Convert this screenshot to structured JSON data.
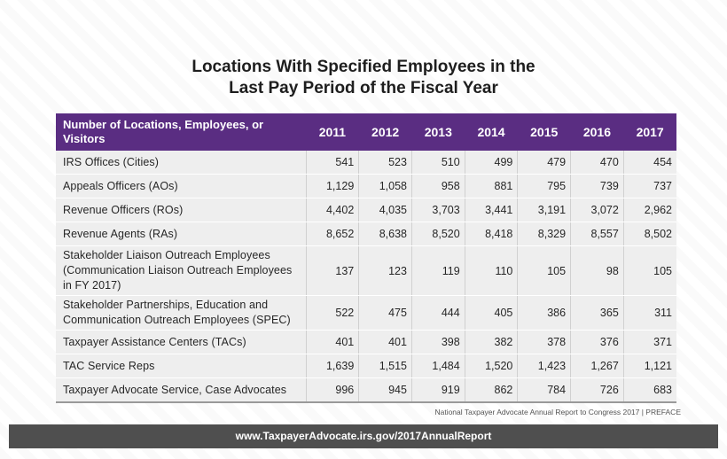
{
  "title": {
    "line1": "Locations With Specified Employees in the",
    "line2": "Last Pay Period of the Fiscal Year"
  },
  "table": {
    "header_label": "Number of Locations, Employees, or Visitors",
    "years": [
      "2011",
      "2012",
      "2013",
      "2014",
      "2015",
      "2016",
      "2017"
    ],
    "rows": [
      {
        "label": "IRS Offices (Cities)",
        "values": [
          "541",
          "523",
          "510",
          "499",
          "479",
          "470",
          "454"
        ]
      },
      {
        "label": "Appeals Officers (AOs)",
        "values": [
          "1,129",
          "1,058",
          "958",
          "881",
          "795",
          "739",
          "737"
        ]
      },
      {
        "label": "Revenue Officers (ROs)",
        "values": [
          "4,402",
          "4,035",
          "3,703",
          "3,441",
          "3,191",
          "3,072",
          "2,962"
        ]
      },
      {
        "label": "Revenue Agents (RAs)",
        "values": [
          "8,652",
          "8,638",
          "8,520",
          "8,418",
          "8,329",
          "8,557",
          "8,502"
        ]
      },
      {
        "label": "Stakeholder Liaison Outreach Employees (Communication Liaison Outreach Employees in FY 2017)",
        "values": [
          "137",
          "123",
          "119",
          "110",
          "105",
          "98",
          "105"
        ]
      },
      {
        "label": "Stakeholder Partnerships, Education and Communication Outreach Employees (SPEC)",
        "values": [
          "522",
          "475",
          "444",
          "405",
          "386",
          "365",
          "311"
        ]
      },
      {
        "label": "Taxpayer Assistance Centers (TACs)",
        "values": [
          "401",
          "401",
          "398",
          "382",
          "378",
          "376",
          "371"
        ]
      },
      {
        "label": "TAC Service Reps",
        "values": [
          "1,639",
          "1,515",
          "1,484",
          "1,520",
          "1,423",
          "1,267",
          "1,121"
        ]
      },
      {
        "label": "Taxpayer Advocate Service, Case Advocates",
        "values": [
          "996",
          "945",
          "919",
          "862",
          "784",
          "726",
          "683"
        ]
      }
    ]
  },
  "footnote": "National Taxpayer Advocate Annual Report to Congress 2017  |  PREFACE",
  "footer_url": "www.TaxpayerAdvocate.irs.gov/2017AnnualReport",
  "colors": {
    "header_bg": "#5a2d82",
    "row_bg": "#eeeeee",
    "footer_bg": "#4f4f4f"
  }
}
